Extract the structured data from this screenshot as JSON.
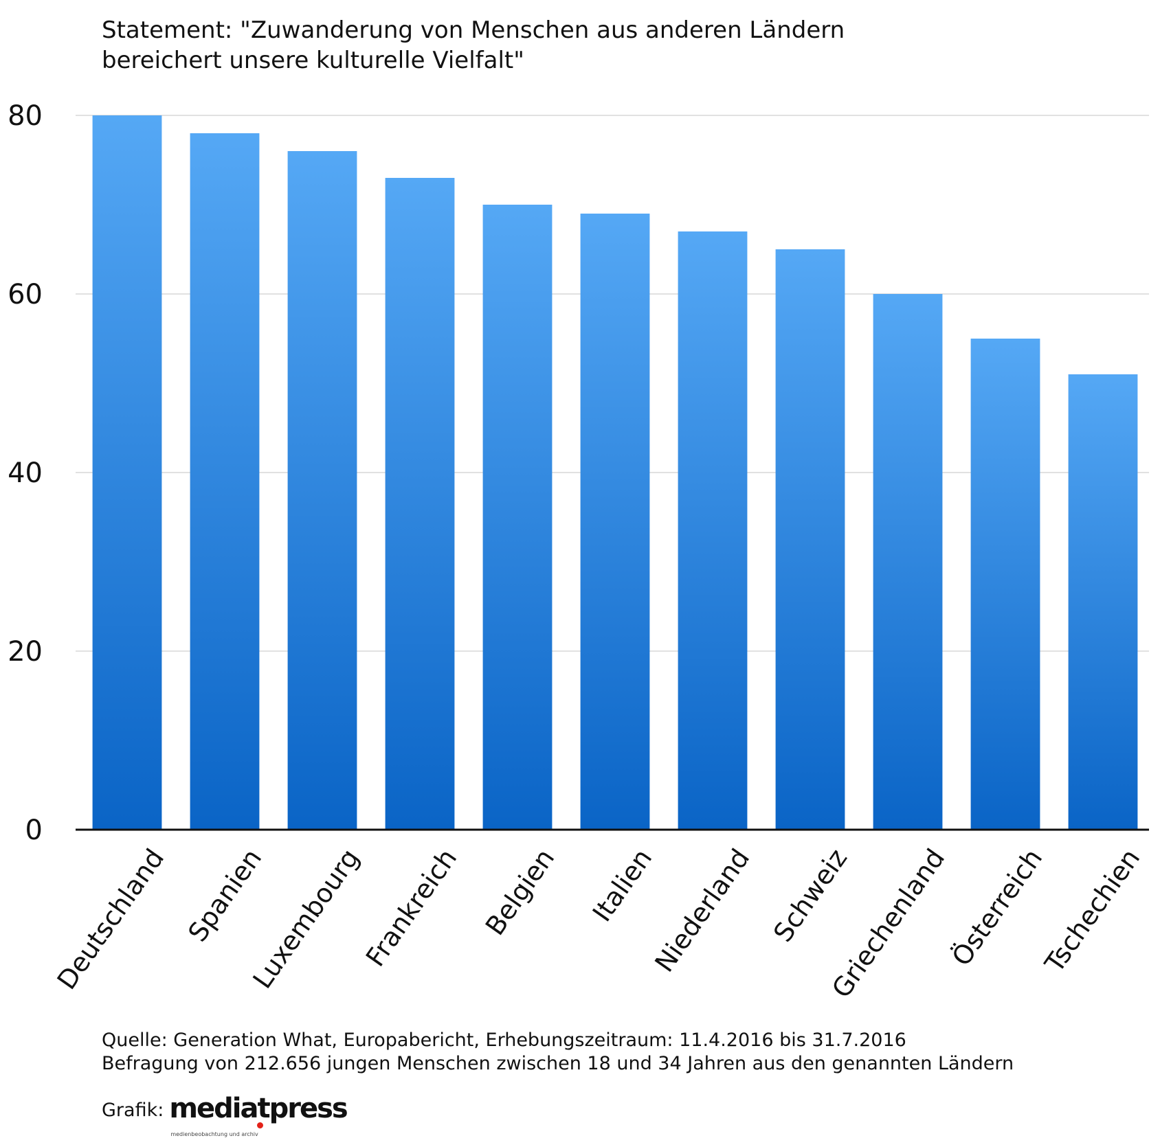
{
  "title": {
    "line1": "Statement: \"Zuwanderung von Menschen aus anderen Ländern",
    "line2": "bereichert unsere kulturelle Vielfalt\""
  },
  "chart_data": {
    "type": "bar",
    "categories": [
      "Deutschland",
      "Spanien",
      "Luxembourg",
      "Frankreich",
      "Belgien",
      "Italien",
      "Niederland",
      "Schweiz",
      "Griechenland",
      "Österreich",
      "Tschechien"
    ],
    "values": [
      80,
      78,
      76,
      73,
      70,
      69,
      67,
      65,
      60,
      55,
      51
    ],
    "ylim": [
      0,
      80
    ],
    "yticks": [
      0,
      20,
      40,
      60,
      80
    ],
    "grid": true,
    "bar_color_top": "#55a8f5",
    "bar_color_bottom": "#0a64c6"
  },
  "footer": {
    "source": "Quelle: Generation What, Europabericht, Erhebungszeitraum: 11.4.2016 bis 31.7.2016",
    "note": "Befragung von 212.656 jungen Menschen zwischen 18 und 34 Jahren aus den genannten Ländern",
    "credit_label": "Grafik:",
    "logo_text": "mediatpress",
    "logo_tagline": "medienbeobachtung und archiv",
    "logo_dot_color": "#e32219"
  }
}
